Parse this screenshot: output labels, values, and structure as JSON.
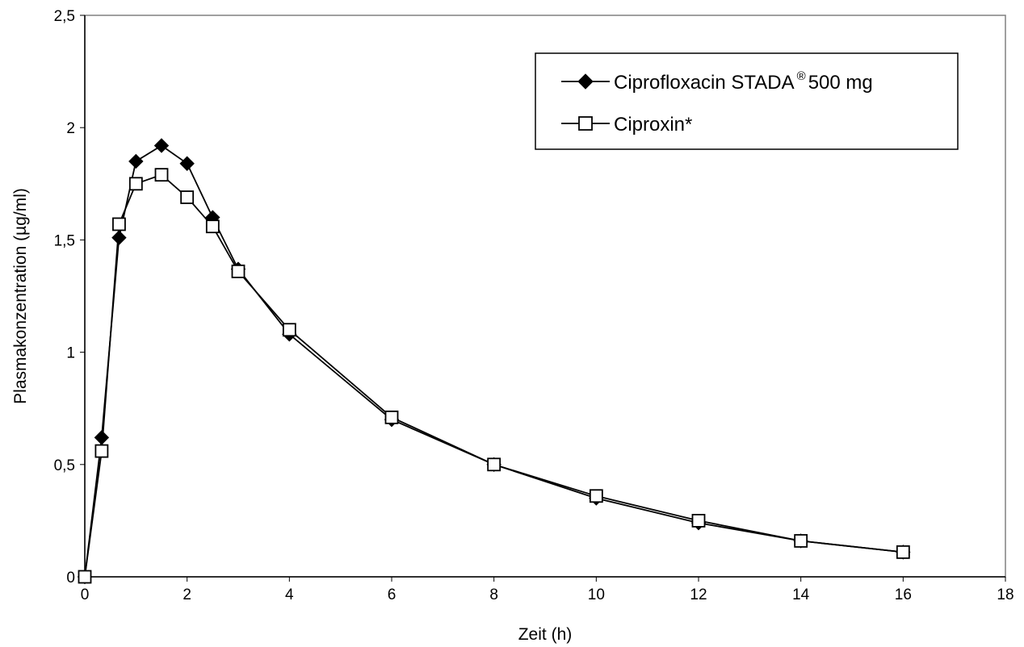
{
  "chart_data": {
    "type": "line",
    "xlabel": "Zeit (h)",
    "ylabel": "Plasmakonzentration (µg/ml)",
    "xlim": [
      0,
      18
    ],
    "ylim": [
      0,
      2.5
    ],
    "x_ticks": [
      "0",
      "2",
      "4",
      "6",
      "8",
      "10",
      "12",
      "14",
      "16",
      "18"
    ],
    "y_ticks": [
      "0",
      "0,5",
      "1",
      "1,5",
      "2",
      "2,5"
    ],
    "grid": false,
    "legend_position": "top-right",
    "series": [
      {
        "name": "Ciprofloxacin STADA",
        "name_superscript": "®",
        "name_suffix": "500 mg",
        "marker": "filled-diamond",
        "color": "#000000",
        "x": [
          0,
          0.33,
          0.67,
          1,
          1.5,
          2,
          2.5,
          3,
          4,
          6,
          8,
          10,
          12,
          14,
          16
        ],
        "y": [
          0,
          0.62,
          1.51,
          1.85,
          1.92,
          1.84,
          1.6,
          1.37,
          1.08,
          0.7,
          0.5,
          0.35,
          0.24,
          0.16,
          0.11
        ]
      },
      {
        "name": "Ciproxin*",
        "marker": "open-square",
        "color": "#000000",
        "x": [
          0,
          0.33,
          0.67,
          1,
          1.5,
          2,
          2.5,
          3,
          4,
          6,
          8,
          10,
          12,
          14,
          16
        ],
        "y": [
          0,
          0.56,
          1.57,
          1.75,
          1.79,
          1.69,
          1.56,
          1.36,
          1.1,
          0.71,
          0.5,
          0.36,
          0.25,
          0.16,
          0.11
        ]
      }
    ]
  }
}
